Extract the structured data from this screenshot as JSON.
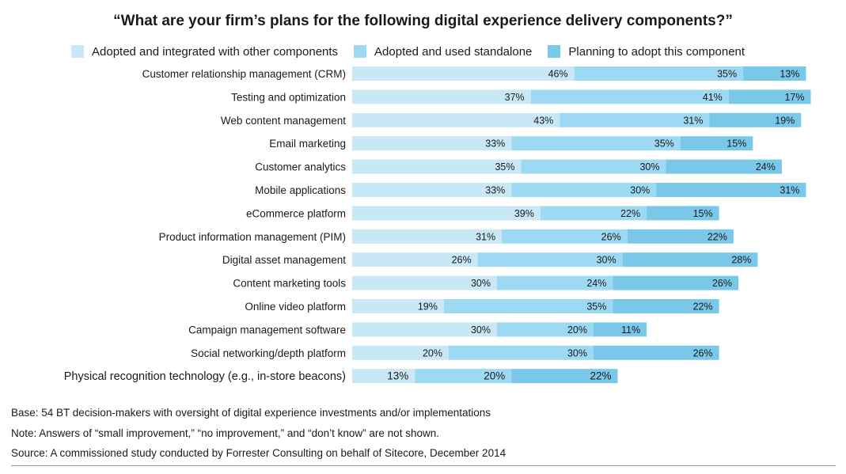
{
  "title": "“What are your firm’s plans for the following digital experience delivery components?”",
  "chart_data": {
    "type": "bar",
    "orientation": "horizontal",
    "stacked": true,
    "title": "“What are your firm’s plans for the following digital experience delivery components?”",
    "categories": [
      "Customer relationship management (CRM)",
      "Testing and optimization",
      "Web content management",
      "Email marketing",
      "Customer analytics",
      "Mobile applications",
      "eCommerce platform",
      "Product information management (PIM)",
      "Digital asset management",
      "Content marketing tools",
      "Online video platform",
      "Campaign management software",
      "Social networking/depth platform",
      "Physical recognition technology (e.g., in-store beacons)"
    ],
    "series": [
      {
        "name": "Adopted and integrated with other components",
        "color": "#c9e8f5",
        "values": [
          46,
          37,
          43,
          33,
          35,
          33,
          39,
          31,
          26,
          30,
          19,
          30,
          20,
          13
        ]
      },
      {
        "name": "Adopted and used standalone",
        "color": "#9ed9f3",
        "values": [
          35,
          41,
          31,
          35,
          30,
          30,
          22,
          26,
          30,
          24,
          35,
          20,
          30,
          20
        ]
      },
      {
        "name": "Planning to adopt this component",
        "color": "#79c8ea",
        "values": [
          13,
          17,
          19,
          15,
          24,
          31,
          15,
          22,
          28,
          26,
          22,
          11,
          26,
          22
        ]
      }
    ],
    "value_suffix": "%",
    "legend_position": "top",
    "grid": false
  },
  "footnotes": {
    "base": "Base: 54 BT decision-makers with oversight of digital experience investments and/or implementations",
    "note": "Note: Answers of “small improvement,” “no improvement,” and “don’t know” are not shown.",
    "source": "Source: A commissioned study conducted by Forrester Consulting on behalf of Sitecore, December 2014"
  }
}
